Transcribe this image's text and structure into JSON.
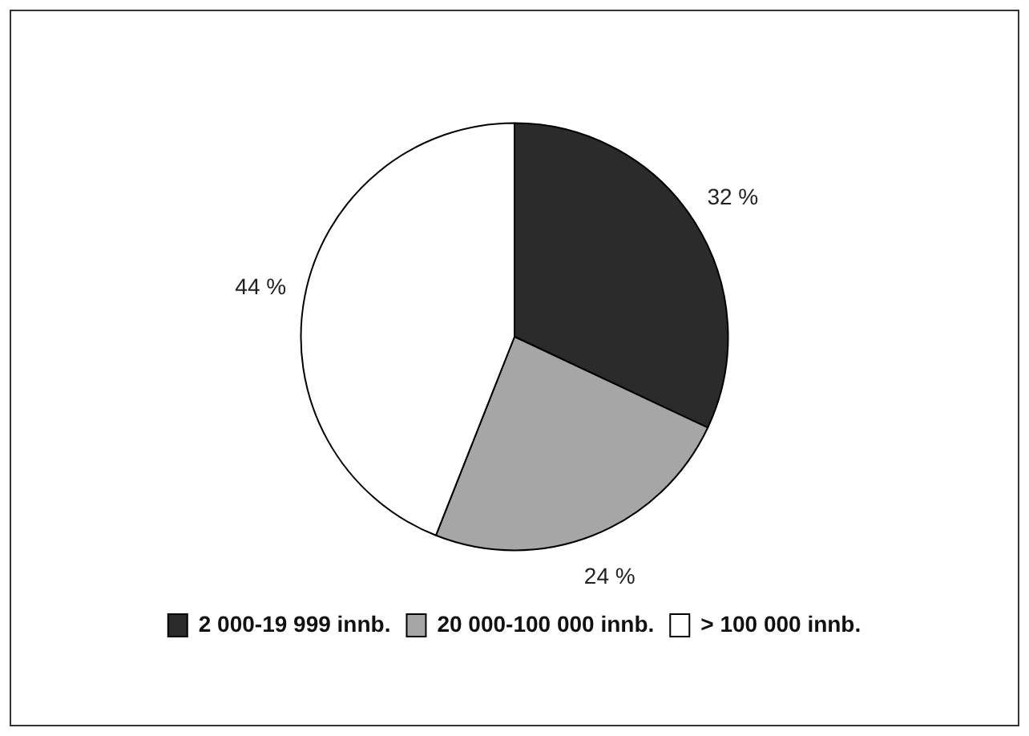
{
  "chart_data": {
    "type": "pie",
    "categories": [
      "2 000-19 999 innb.",
      "20 000-100 000 innb.",
      "> 100 000 innb."
    ],
    "values": [
      32,
      24,
      44
    ],
    "colors": [
      "#2b2b2b",
      "#a6a6a6",
      "#ffffff"
    ],
    "value_labels": [
      "32 %",
      "24 %",
      "44 %"
    ],
    "legend": "bottom"
  }
}
